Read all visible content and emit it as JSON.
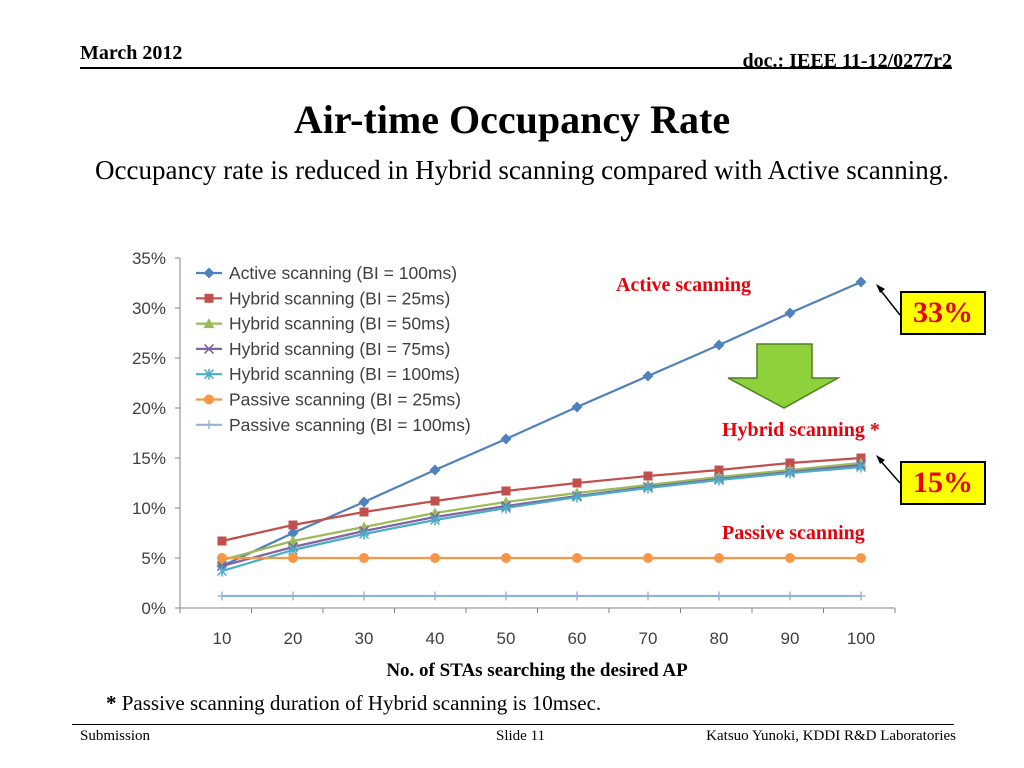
{
  "header": {
    "date": "March 2012",
    "doc": "doc.: IEEE 11-12/0277r2"
  },
  "slide": {
    "title": "Air-time Occupancy Rate",
    "subtitle": "Occupancy rate is reduced in Hybrid scanning compared with Active scanning.",
    "note_mark": "*",
    "note_text": " Passive scanning duration of Hybrid scanning is 10msec."
  },
  "annotations": {
    "active": "Active scanning",
    "hybrid": "Hybrid scanning *",
    "passive": "Passive scanning",
    "badge_top": "33%",
    "badge_bottom": "15%"
  },
  "footer": {
    "left": "Submission",
    "center": "Slide 11",
    "right": "Katsuo Yunoki, KDDI R&D Laboratories"
  },
  "chart_data": {
    "type": "line",
    "xlabel": "No. of STAs searching the desired AP",
    "ylabel": "",
    "x": [
      10,
      20,
      30,
      40,
      50,
      60,
      70,
      80,
      90,
      100
    ],
    "ylim": [
      0,
      35
    ],
    "yticks": [
      "0%",
      "5%",
      "10%",
      "15%",
      "20%",
      "25%",
      "30%",
      "35%"
    ],
    "grid": false,
    "legend": "top-left",
    "series": [
      {
        "name": "Active scanning (BI = 100ms)",
        "color": "#4f81bd",
        "marker": "diamond",
        "values": [
          4.2,
          7.5,
          10.6,
          13.8,
          16.9,
          20.1,
          23.2,
          26.3,
          29.5,
          32.6
        ]
      },
      {
        "name": "Hybrid scanning (BI = 25ms)",
        "color": "#c0504d",
        "marker": "square",
        "values": [
          6.7,
          8.3,
          9.6,
          10.7,
          11.7,
          12.5,
          13.2,
          13.8,
          14.5,
          15.0
        ]
      },
      {
        "name": "Hybrid scanning (BI = 50ms)",
        "color": "#9bbb59",
        "marker": "triangle",
        "values": [
          4.8,
          6.7,
          8.1,
          9.5,
          10.6,
          11.5,
          12.3,
          13.1,
          13.8,
          14.5
        ]
      },
      {
        "name": "Hybrid scanning (BI = 75ms)",
        "color": "#8064a2",
        "marker": "x",
        "values": [
          4.2,
          6.1,
          7.7,
          9.1,
          10.2,
          11.2,
          12.1,
          12.9,
          13.6,
          14.3
        ]
      },
      {
        "name": "Hybrid scanning (BI = 100ms)",
        "color": "#4bacc6",
        "marker": "star",
        "values": [
          3.7,
          5.8,
          7.4,
          8.8,
          10.0,
          11.1,
          12.0,
          12.8,
          13.5,
          14.1
        ]
      },
      {
        "name": "Passive scanning (BI = 25ms)",
        "color": "#f79646",
        "marker": "circle",
        "values": [
          5.0,
          5.0,
          5.0,
          5.0,
          5.0,
          5.0,
          5.0,
          5.0,
          5.0,
          5.0
        ]
      },
      {
        "name": "Passive scanning (BI = 100ms)",
        "color": "#95b3d7",
        "marker": "plus",
        "values": [
          1.2,
          1.2,
          1.2,
          1.2,
          1.2,
          1.2,
          1.2,
          1.2,
          1.2,
          1.2
        ]
      }
    ]
  }
}
